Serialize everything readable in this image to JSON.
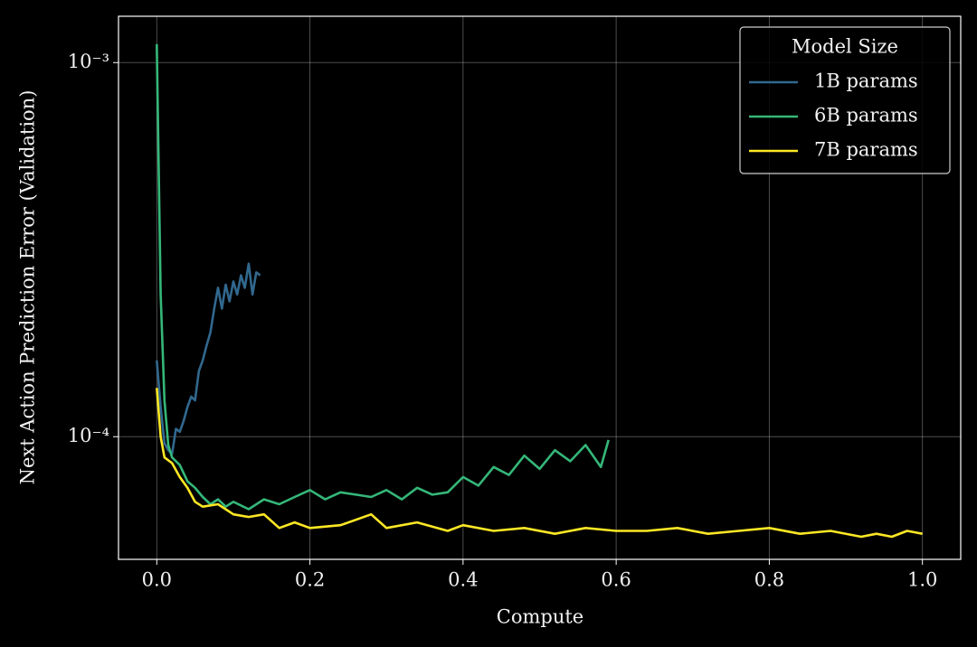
{
  "chart_data": {
    "type": "line",
    "xlabel": "Compute",
    "ylabel": "Next Action Prediction Error (Validation)",
    "xlim": [
      -0.05,
      1.05
    ],
    "ylim": [
      4.7e-05,
      0.00133
    ],
    "log_y": true,
    "grid": true,
    "xticks": [
      {
        "value": 0,
        "label": "0.0"
      },
      0.2,
      0.4,
      0.6,
      0.8,
      {
        "value": 1,
        "label": "1.0"
      }
    ],
    "yticks": [
      {
        "value": 0.0001,
        "label": "10⁻⁴"
      },
      {
        "value": 0.001,
        "label": "10⁻³"
      }
    ],
    "legend_title": "Model Size",
    "legend": "upper right",
    "series": [
      {
        "name": "1B params",
        "color": "#31688e",
        "x": [
          0,
          0.005,
          0.01,
          0.015,
          0.02,
          0.025,
          0.03,
          0.035,
          0.04,
          0.045,
          0.05,
          0.055,
          0.06,
          0.065,
          0.07,
          0.075,
          0.08,
          0.085,
          0.09,
          0.095,
          0.1,
          0.105,
          0.11,
          0.115,
          0.12,
          0.125,
          0.13,
          0.135
        ],
        "values": [
          0.00016,
          0.00012,
          9.6e-05,
          9.2e-05,
          9e-05,
          0.000105,
          0.000103,
          0.00011,
          0.00012,
          0.000128,
          0.000125,
          0.00015,
          0.00016,
          0.000175,
          0.00019,
          0.00022,
          0.00025,
          0.00022,
          0.000255,
          0.00023,
          0.00026,
          0.00024,
          0.00027,
          0.00025,
          0.00029,
          0.00024,
          0.000275,
          0.00027
        ]
      },
      {
        "name": "6B params",
        "color": "#35b779",
        "x": [
          0,
          0.005,
          0.01,
          0.015,
          0.02,
          0.03,
          0.04,
          0.05,
          0.06,
          0.07,
          0.08,
          0.09,
          0.1,
          0.12,
          0.14,
          0.16,
          0.18,
          0.2,
          0.22,
          0.24,
          0.26,
          0.28,
          0.3,
          0.32,
          0.34,
          0.36,
          0.38,
          0.4,
          0.42,
          0.44,
          0.46,
          0.48,
          0.5,
          0.52,
          0.54,
          0.56,
          0.58,
          0.59
        ],
        "values": [
          0.00112,
          0.00024,
          0.000125,
          9.5e-05,
          8.8e-05,
          8.4e-05,
          7.6e-05,
          7.3e-05,
          6.9e-05,
          6.6e-05,
          6.8e-05,
          6.5e-05,
          6.7e-05,
          6.4e-05,
          6.8e-05,
          6.6e-05,
          6.9e-05,
          7.2e-05,
          6.8e-05,
          7.1e-05,
          7e-05,
          6.9e-05,
          7.2e-05,
          6.8e-05,
          7.3e-05,
          7e-05,
          7.1e-05,
          7.8e-05,
          7.4e-05,
          8.3e-05,
          7.9e-05,
          8.9e-05,
          8.2e-05,
          9.2e-05,
          8.6e-05,
          9.5e-05,
          8.3e-05,
          9.8e-05
        ]
      },
      {
        "name": "7B params",
        "color": "#fde725",
        "x": [
          0,
          0.005,
          0.01,
          0.02,
          0.03,
          0.04,
          0.05,
          0.06,
          0.08,
          0.1,
          0.12,
          0.14,
          0.16,
          0.18,
          0.2,
          0.24,
          0.28,
          0.3,
          0.34,
          0.38,
          0.4,
          0.44,
          0.48,
          0.52,
          0.56,
          0.6,
          0.64,
          0.68,
          0.72,
          0.76,
          0.8,
          0.84,
          0.88,
          0.92,
          0.94,
          0.96,
          0.98,
          1.0
        ],
        "values": [
          0.000135,
          0.0001,
          8.8e-05,
          8.5e-05,
          7.8e-05,
          7.3e-05,
          6.7e-05,
          6.5e-05,
          6.6e-05,
          6.2e-05,
          6.1e-05,
          6.2e-05,
          5.7e-05,
          5.9e-05,
          5.7e-05,
          5.8e-05,
          6.2e-05,
          5.7e-05,
          5.9e-05,
          5.6e-05,
          5.8e-05,
          5.6e-05,
          5.7e-05,
          5.5e-05,
          5.7e-05,
          5.6e-05,
          5.6e-05,
          5.7e-05,
          5.5e-05,
          5.6e-05,
          5.7e-05,
          5.5e-05,
          5.6e-05,
          5.4e-05,
          5.5e-05,
          5.4e-05,
          5.6e-05,
          5.5e-05
        ]
      }
    ]
  }
}
